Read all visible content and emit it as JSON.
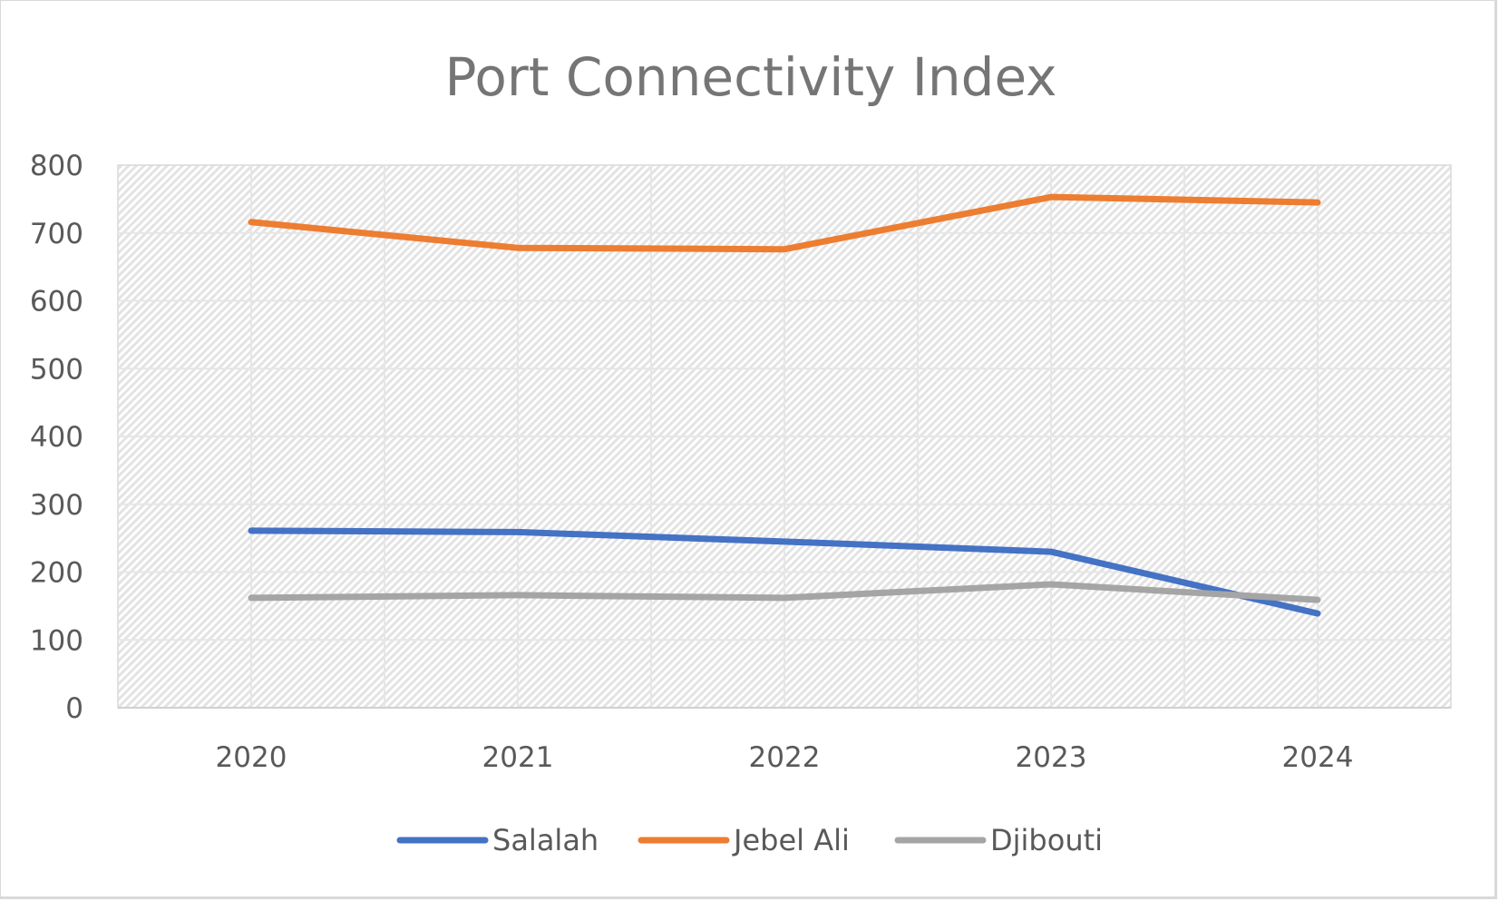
{
  "chart_data": {
    "type": "line",
    "title": "Port Connectivity Index",
    "xlabel": "",
    "ylabel": "",
    "categories": [
      "2020",
      "2021",
      "2022",
      "2023",
      "2024"
    ],
    "ylim": [
      0,
      800
    ],
    "yticks": [
      "0",
      "100",
      "200",
      "300",
      "400",
      "500",
      "600",
      "700",
      "800"
    ],
    "grid": true,
    "legend_position": "bottom",
    "series": [
      {
        "name": "Salalah",
        "color": "#4472C4",
        "values": [
          261,
          259,
          245,
          230,
          139
        ]
      },
      {
        "name": "Jebel Ali",
        "color": "#ED7D31",
        "values": [
          716,
          678,
          676,
          753,
          745
        ]
      },
      {
        "name": "Djibouti",
        "color": "#A5A5A5",
        "values": [
          162,
          166,
          162,
          182,
          159
        ]
      }
    ]
  }
}
